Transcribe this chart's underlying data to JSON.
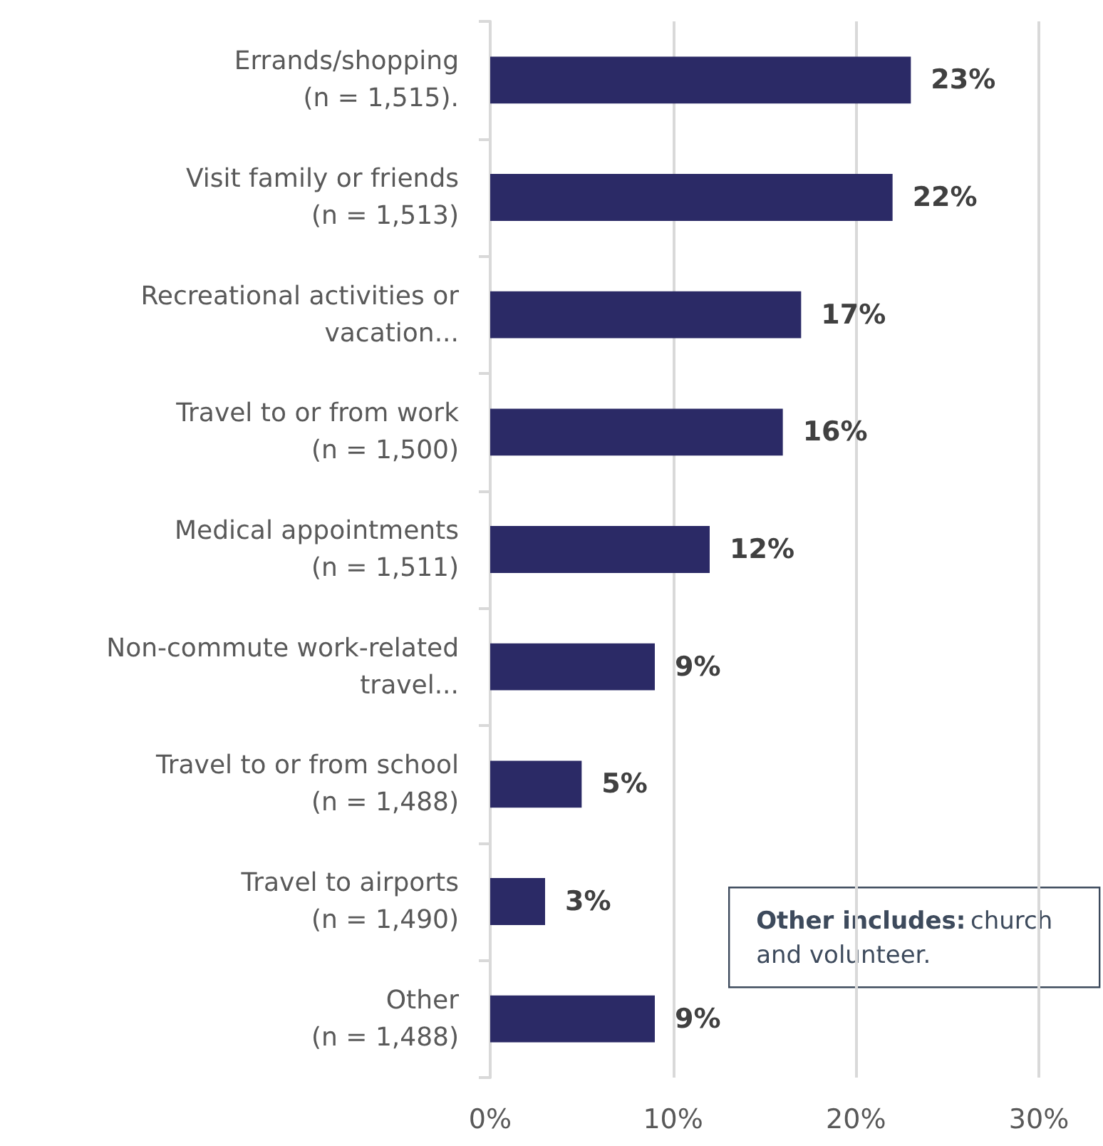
{
  "chart_data": {
    "type": "bar",
    "orientation": "horizontal",
    "categories": [
      "Errands/shopping\n(n = 1,515).",
      "Visit family or friends\n(n = 1,513)",
      "Recreational activities or\nvacation...",
      "Travel to or from work\n(n = 1,500)",
      "Medical appointments\n(n = 1,511)",
      "Non-commute work-related\ntravel...",
      "Travel to or from school\n(n = 1,488)",
      "Travel to airports\n(n = 1,490)",
      "Other\n(n = 1,488)"
    ],
    "values": [
      23,
      22,
      17,
      16,
      12,
      9,
      5,
      3,
      9
    ],
    "color": "#2b2a66",
    "value_labels": [
      "23%",
      "22%",
      "17%",
      "16%",
      "12%",
      "9%",
      "5%",
      "3%",
      "9%"
    ],
    "xlim": [
      0,
      30
    ],
    "xticks": [
      {
        "value": 0,
        "label": "0%"
      },
      {
        "value": 10,
        "label": "10%"
      },
      {
        "value": 20,
        "label": "20%"
      },
      {
        "value": 30,
        "label": "30%"
      }
    ],
    "grid": "x",
    "annotations": [
      "Other includes: church and volunteer."
    ]
  }
}
